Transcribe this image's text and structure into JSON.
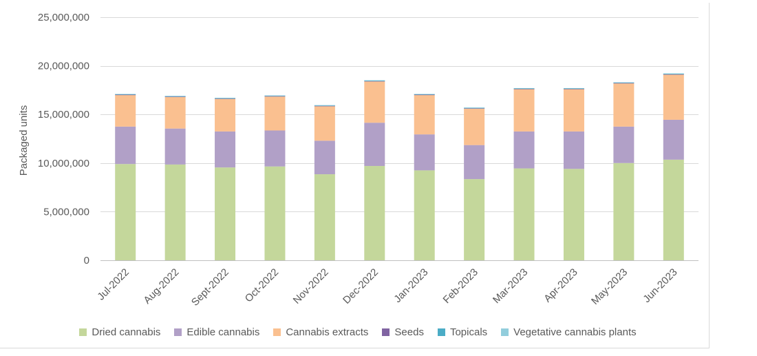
{
  "chart_data": {
    "type": "bar",
    "stacked": true,
    "title": "",
    "xlabel": "",
    "ylabel": "Packaged units",
    "ylim": [
      0,
      25000000
    ],
    "yticks": [
      0,
      5000000,
      10000000,
      15000000,
      20000000,
      25000000
    ],
    "ytick_labels": [
      "0",
      "5,000,000",
      "10,000,000",
      "15,000,000",
      "20,000,000",
      "25,000,000"
    ],
    "grid": true,
    "legend_position": "bottom",
    "categories": [
      "Jul-2022",
      "Aug-2022",
      "Sept-2022",
      "Oct-2022",
      "Nov-2022",
      "Dec-2022",
      "Jan-2023",
      "Feb-2023",
      "Mar-2023",
      "Apr-2023",
      "May-2023",
      "Jun-2023"
    ],
    "series": [
      {
        "name": "Dried cannabis",
        "color": "#c4d79b",
        "values": [
          9900000,
          9850000,
          9550000,
          9650000,
          8850000,
          9700000,
          9250000,
          8350000,
          9450000,
          9400000,
          10000000,
          10350000
        ]
      },
      {
        "name": "Edible cannabis",
        "color": "#b1a0c7",
        "values": [
          3850000,
          3700000,
          3700000,
          3700000,
          3450000,
          4450000,
          3700000,
          3500000,
          3800000,
          3850000,
          3750000,
          4100000
        ]
      },
      {
        "name": "Cannabis extracts",
        "color": "#fac090",
        "values": [
          3250000,
          3250000,
          3350000,
          3500000,
          3550000,
          4250000,
          4050000,
          3750000,
          4350000,
          4350000,
          4450000,
          4650000
        ]
      },
      {
        "name": "Seeds",
        "color": "#8064a2",
        "values": [
          30000,
          30000,
          30000,
          30000,
          30000,
          30000,
          30000,
          30000,
          30000,
          30000,
          30000,
          30000
        ]
      },
      {
        "name": "Topicals",
        "color": "#4bacc6",
        "values": [
          60000,
          60000,
          60000,
          60000,
          60000,
          70000,
          60000,
          60000,
          60000,
          60000,
          60000,
          70000
        ]
      },
      {
        "name": "Vegetative cannabis plants",
        "color": "#92cddc",
        "values": [
          20000,
          20000,
          20000,
          20000,
          20000,
          20000,
          20000,
          20000,
          20000,
          20000,
          20000,
          20000
        ]
      }
    ]
  }
}
